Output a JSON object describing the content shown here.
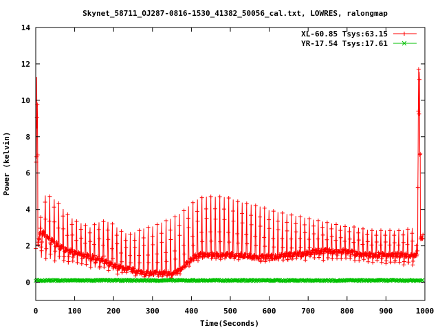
{
  "chart_data": {
    "type": "line",
    "title": "Skynet_58711_OJ287-0816-1530_41382_50056_cal.txt, LOWRES, ralongmap",
    "xlabel": "Time(Seconds)",
    "ylabel": "Power (kelvin)",
    "xlim": [
      0,
      1000
    ],
    "ylim": [
      -1,
      14
    ],
    "xticks": [
      "0",
      "100",
      "200",
      "300",
      "400",
      "500",
      "600",
      "700",
      "800",
      "900",
      "1000"
    ],
    "yticks": [
      "0",
      "2",
      "4",
      "6",
      "8",
      "10",
      "12",
      "14"
    ],
    "legend_position": "top-right",
    "grid": false,
    "series": [
      {
        "name": "XL-60.85 Tsys:63.15",
        "color": "#ff0000",
        "marker": "plus",
        "envelope_x": [
          0,
          2,
          4,
          6,
          10,
          20,
          40,
          60,
          80,
          100,
          120,
          140,
          160,
          180,
          200,
          220,
          240,
          260,
          280,
          300,
          320,
          340,
          360,
          380,
          400,
          420,
          440,
          460,
          480,
          500,
          520,
          540,
          560,
          580,
          600,
          620,
          640,
          660,
          680,
          700,
          720,
          740,
          760,
          780,
          800,
          820,
          840,
          860,
          880,
          900,
          920,
          940,
          960,
          975,
          980,
          984,
          986,
          990,
          995
        ],
        "upper": [
          2.0,
          11.2,
          11.5,
          2.5,
          3.2,
          5.1,
          5.0,
          4.6,
          4.0,
          3.6,
          3.4,
          3.2,
          3.5,
          3.6,
          3.4,
          3.0,
          2.8,
          3.0,
          3.2,
          3.3,
          3.5,
          3.7,
          3.9,
          4.2,
          4.6,
          4.9,
          5.0,
          5.0,
          5.0,
          4.9,
          4.7,
          4.6,
          4.5,
          4.4,
          4.2,
          4.1,
          4.0,
          3.9,
          3.8,
          3.7,
          3.6,
          3.5,
          3.4,
          3.3,
          3.2,
          3.2,
          3.1,
          3.0,
          3.0,
          3.0,
          3.0,
          3.0,
          3.1,
          3.2,
          2.5,
          11.7,
          11.5,
          2.6,
          2.4
        ],
        "lower": [
          1.9,
          2.0,
          2.0,
          1.9,
          1.3,
          1.2,
          1.2,
          1.1,
          1.0,
          1.0,
          1.0,
          0.9,
          0.8,
          0.7,
          0.6,
          0.5,
          0.5,
          0.4,
          0.4,
          0.3,
          0.3,
          0.3,
          0.4,
          0.6,
          1.1,
          1.3,
          1.4,
          1.3,
          1.3,
          1.3,
          1.3,
          1.3,
          1.2,
          1.2,
          1.2,
          1.2,
          1.2,
          1.2,
          1.3,
          1.3,
          1.3,
          1.3,
          1.3,
          1.3,
          1.2,
          1.2,
          1.1,
          1.1,
          1.1,
          1.1,
          1.0,
          1.0,
          1.0,
          1.0,
          1.0,
          2.0,
          2.2,
          2.3,
          2.3
        ],
        "baseline": [
          2.0,
          2.0,
          2.0,
          2.0,
          2.6,
          2.7,
          2.3,
          2.0,
          1.8,
          1.6,
          1.5,
          1.4,
          1.3,
          1.1,
          0.9,
          0.8,
          0.7,
          0.6,
          0.5,
          0.5,
          0.5,
          0.5,
          0.5,
          0.8,
          1.3,
          1.5,
          1.5,
          1.5,
          1.5,
          1.5,
          1.5,
          1.5,
          1.4,
          1.4,
          1.4,
          1.4,
          1.5,
          1.5,
          1.6,
          1.6,
          1.7,
          1.7,
          1.7,
          1.7,
          1.7,
          1.6,
          1.5,
          1.5,
          1.5,
          1.5,
          1.5,
          1.5,
          1.5,
          1.5,
          1.6,
          2.3,
          2.4,
          2.5,
          2.5
        ]
      },
      {
        "name": "YR-17.54 Tsys:17.61",
        "color": "#00c000",
        "marker": "x",
        "x_range": [
          0,
          995
        ],
        "value": 0.1,
        "jitter": 0.08
      }
    ]
  }
}
